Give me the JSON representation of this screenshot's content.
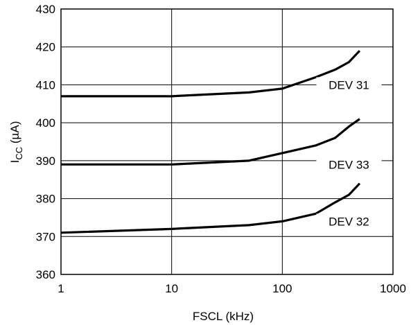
{
  "chart_data": {
    "type": "line",
    "title": "",
    "xlabel": "FSCL (kHz)",
    "ylabel_main": "I",
    "ylabel_sub": "CC",
    "ylabel_unit": " (µA)",
    "x_scale": "log",
    "xlim": [
      1,
      1000
    ],
    "ylim": [
      360,
      430
    ],
    "x_ticks": [
      1,
      10,
      100,
      1000
    ],
    "x_tick_labels": [
      "1",
      "10",
      "100",
      "1000"
    ],
    "y_ticks": [
      360,
      370,
      380,
      390,
      400,
      410,
      420,
      430
    ],
    "y_tick_labels": [
      "360",
      "370",
      "380",
      "390",
      "400",
      "410",
      "420",
      "430"
    ],
    "grid": true,
    "series": [
      {
        "name": "DEV 31",
        "x": [
          1,
          10,
          50,
          100,
          200,
          300,
          400,
          500
        ],
        "y": [
          407,
          407,
          408,
          409,
          412,
          414,
          416,
          419
        ]
      },
      {
        "name": "DEV 33",
        "x": [
          1,
          10,
          50,
          100,
          200,
          300,
          400,
          500
        ],
        "y": [
          389,
          389,
          390,
          392,
          394,
          396,
          399,
          401
        ]
      },
      {
        "name": "DEV 32",
        "x": [
          1,
          10,
          50,
          100,
          200,
          300,
          400,
          500
        ],
        "y": [
          371,
          372,
          373,
          374,
          376,
          379,
          381,
          384
        ]
      }
    ]
  }
}
